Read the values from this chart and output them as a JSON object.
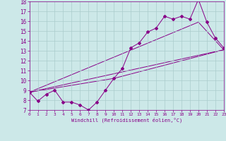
{
  "xlabel": "Windchill (Refroidissement éolien,°C)",
  "bg_color": "#cce8e8",
  "line_color": "#880088",
  "grid_color": "#aacccc",
  "x_min": 0,
  "x_max": 23,
  "y_min": 7,
  "y_max": 18,
  "series1_x": [
    0,
    1,
    2,
    3,
    4,
    5,
    6,
    7,
    8,
    9,
    10,
    11,
    12,
    13,
    14,
    15,
    16,
    17,
    18,
    19,
    20,
    21,
    22,
    23
  ],
  "series1_y": [
    8.8,
    7.9,
    8.6,
    9.0,
    7.8,
    7.8,
    7.5,
    7.0,
    7.8,
    9.0,
    10.2,
    11.2,
    13.3,
    13.8,
    14.9,
    15.3,
    16.5,
    16.2,
    16.5,
    16.2,
    18.2,
    15.9,
    14.3,
    13.3
  ],
  "series2_x": [
    0,
    23
  ],
  "series2_y": [
    8.8,
    13.1
  ],
  "series3_x": [
    0,
    20,
    23
  ],
  "series3_y": [
    8.8,
    15.9,
    13.1
  ],
  "series4_x": [
    0,
    10,
    23
  ],
  "series4_y": [
    8.8,
    10.2,
    13.1
  ]
}
